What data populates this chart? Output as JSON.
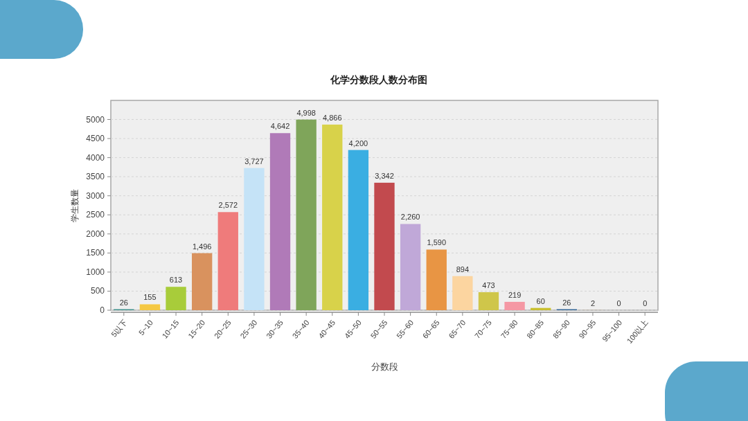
{
  "chart_data": {
    "type": "bar",
    "title": "化学分数段人数分布图",
    "xlabel": "分数段",
    "ylabel": "学生数量",
    "categories": [
      "5以下",
      "5~10",
      "10~15",
      "15~20",
      "20~25",
      "25~30",
      "30~35",
      "35~40",
      "40~45",
      "45~50",
      "50~55",
      "55~60",
      "60~65",
      "65~70",
      "70~75",
      "75~80",
      "80~85",
      "85~90",
      "90~95",
      "95~100",
      "100以上"
    ],
    "values": [
      26,
      155,
      613,
      1496,
      2572,
      3727,
      4642,
      4998,
      4866,
      4200,
      3342,
      2260,
      1590,
      894,
      473,
      219,
      60,
      26,
      2,
      0,
      0
    ],
    "value_labels": [
      "26",
      "155",
      "613",
      "1,496",
      "2,572",
      "3,727",
      "4,642",
      "4,998",
      "4,866",
      "4,200",
      "3,342",
      "2,260",
      "1,590",
      "894",
      "473",
      "219",
      "60",
      "26",
      "2",
      "0",
      "0"
    ],
    "colors": [
      "#3a8f8a",
      "#f5c842",
      "#a8cc3a",
      "#d9925e",
      "#ef7b7b",
      "#c5e3f7",
      "#b07ab8",
      "#7fa55a",
      "#d8d24a",
      "#3aaee2",
      "#c24a4e",
      "#c0a8d8",
      "#e89544",
      "#fcd5a0",
      "#cfc64a",
      "#f598a4",
      "#c9c030",
      "#2f6496",
      "#c08a48",
      "#e86a3e",
      "#3f9a44"
    ],
    "ylim": [
      0,
      5500
    ],
    "yticks": [
      0,
      500,
      1000,
      1500,
      2000,
      2500,
      3000,
      3500,
      4000,
      4500,
      5000
    ],
    "grid": "y"
  }
}
